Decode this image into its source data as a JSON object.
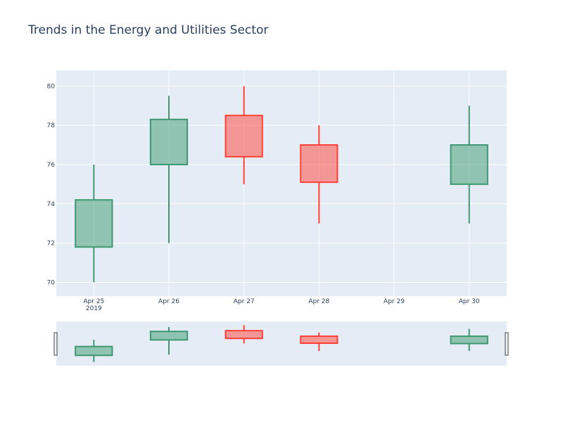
{
  "chart_data": {
    "type": "candlestick",
    "title": "Trends in the Energy and Utilities Sector",
    "x_ticks": [
      {
        "date": "2019-04-25",
        "label": "Apr 25",
        "sublabel": "2019"
      },
      {
        "date": "2019-04-26",
        "label": "Apr 26",
        "sublabel": ""
      },
      {
        "date": "2019-04-27",
        "label": "Apr 27",
        "sublabel": ""
      },
      {
        "date": "2019-04-28",
        "label": "Apr 28",
        "sublabel": ""
      },
      {
        "date": "2019-04-29",
        "label": "Apr 29",
        "sublabel": ""
      },
      {
        "date": "2019-04-30",
        "label": "Apr 30",
        "sublabel": ""
      }
    ],
    "y_ticks": [
      70,
      72,
      74,
      76,
      78,
      80
    ],
    "ylim": [
      69.3,
      80.8
    ],
    "candles": [
      {
        "date": "2019-04-25",
        "open": 71.8,
        "high": 76,
        "low": 70,
        "close": 74.2
      },
      {
        "date": "2019-04-26",
        "open": 76,
        "high": 79.5,
        "low": 72,
        "close": 78.3
      },
      {
        "date": "2019-04-27",
        "open": 78.5,
        "high": 80,
        "low": 75,
        "close": 76.4
      },
      {
        "date": "2019-04-28",
        "open": 77,
        "high": 78,
        "low": 73,
        "close": 75.1
      },
      {
        "date": "2019-04-30",
        "open": 75,
        "high": 79,
        "low": 73,
        "close": 77
      }
    ],
    "increasing_color": "#3d9970",
    "decreasing_color": "#ff4136",
    "plot_bg": "#e5ecf6",
    "grid": true,
    "rangeslider": true
  }
}
